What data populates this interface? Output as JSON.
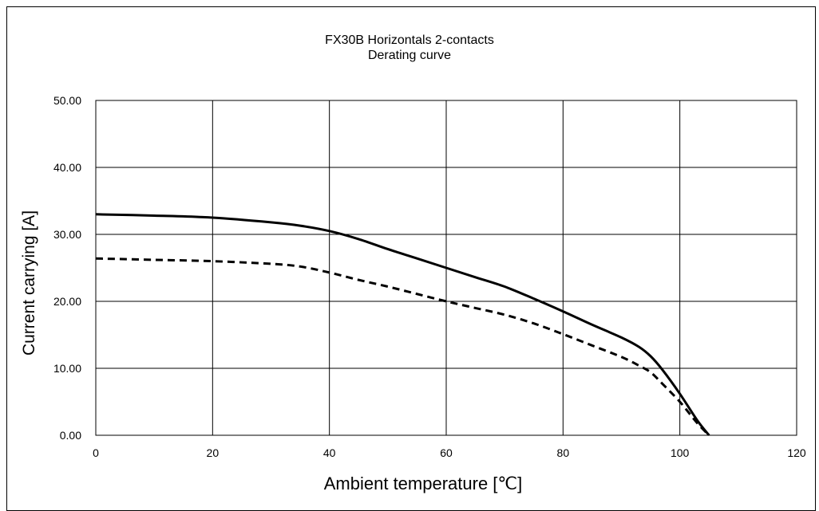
{
  "chart_data": {
    "type": "line",
    "title": "FX30B Horizontals 2-contacts",
    "subtitle": "Derating curve",
    "xlabel": "Ambient temperature [℃]",
    "ylabel": "Current carrying [A]",
    "xlim": [
      0,
      120
    ],
    "ylim": [
      0,
      50
    ],
    "x_ticks": [
      0,
      20,
      40,
      60,
      80,
      100,
      120
    ],
    "y_ticks": [
      "0.00",
      "10.00",
      "20.00",
      "30.00",
      "40.00",
      "50.00"
    ],
    "grid": true,
    "series": [
      {
        "style": "solid",
        "color": "#000000",
        "x": [
          0,
          10,
          20,
          30,
          35,
          40,
          45,
          50,
          55,
          60,
          65,
          70,
          75,
          80,
          85,
          90,
          93,
          95,
          97,
          100,
          103,
          105
        ],
        "y": [
          33.0,
          32.8,
          32.5,
          31.8,
          31.3,
          30.5,
          29.3,
          27.8,
          26.4,
          25.0,
          23.6,
          22.2,
          20.4,
          18.5,
          16.5,
          14.6,
          13.2,
          11.8,
          9.8,
          6.2,
          2.2,
          0
        ]
      },
      {
        "style": "dashed",
        "color": "#000000",
        "x": [
          0,
          10,
          20,
          30,
          35,
          40,
          45,
          50,
          55,
          60,
          65,
          70,
          75,
          80,
          85,
          90,
          93,
          95,
          97,
          100,
          103,
          105
        ],
        "y": [
          26.4,
          26.2,
          26.0,
          25.6,
          25.2,
          24.3,
          23.2,
          22.2,
          21.1,
          20.0,
          19.0,
          18.0,
          16.7,
          15.1,
          13.4,
          11.7,
          10.4,
          9.4,
          7.7,
          5.0,
          1.8,
          0
        ]
      }
    ]
  }
}
